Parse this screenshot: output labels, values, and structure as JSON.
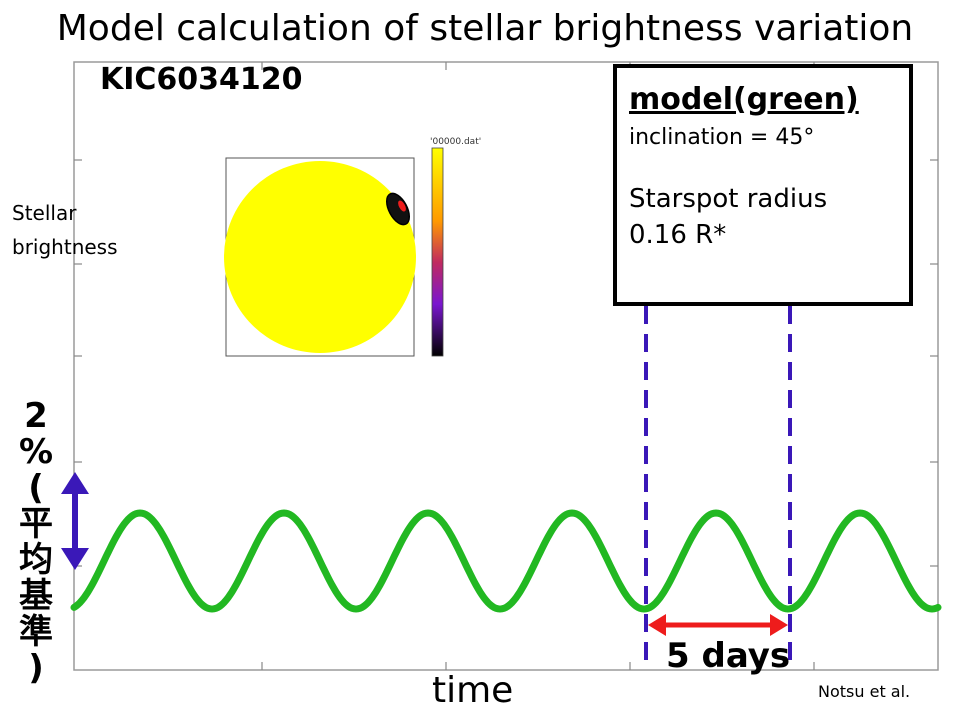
{
  "title": "Model calculation of stellar brightness variation",
  "star_id": "KIC6034120",
  "y_axis_label": [
    "Stellar",
    "brightness"
  ],
  "x_axis_label": "time",
  "credit": "Notsu et al.",
  "scale_bar": {
    "label_lines": [
      "2",
      "%",
      "(",
      "平",
      "均",
      "基",
      "準",
      ")"
    ],
    "color": "#3a18b8"
  },
  "period_marker": {
    "label": "5 days",
    "color": "#ee1c1c",
    "dash_color": "#3a18b8"
  },
  "model_box": {
    "heading": "model(green)",
    "inclination": "inclination = 45°",
    "spot_label": "Starspot radius",
    "spot_value": "0.16 R*"
  },
  "star_image": {
    "colorbar_label": "'00000.dat'",
    "disk_color": "#ffff00",
    "spot_colors": [
      "#000000",
      "#ee1c1c"
    ]
  },
  "chart_data": {
    "type": "line",
    "series": [
      {
        "color": "#22b822",
        "period_days": 5,
        "amplitude_percent": 2,
        "cycles_shown": 5.7
      }
    ],
    "xlabel": "time",
    "ylabel": "Stellar brightness",
    "grid": false
  }
}
